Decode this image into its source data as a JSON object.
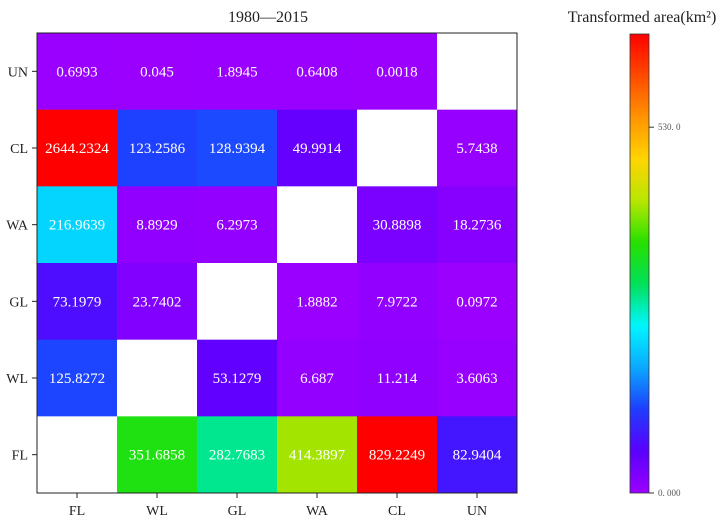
{
  "chart_data": {
    "type": "heatmap",
    "title": "1980—2015",
    "xlabel": "",
    "ylabel": "",
    "x_categories": [
      "FL",
      "WL",
      "GL",
      "WA",
      "CL",
      "UN"
    ],
    "y_categories": [
      "UN",
      "CL",
      "WA",
      "GL",
      "WL",
      "FL"
    ],
    "values": [
      [
        "0.6993",
        "0.045",
        "1.8945",
        "0.6408",
        "0.0018",
        null
      ],
      [
        "2644.2324",
        "123.2586",
        "128.9394",
        "49.9914",
        null,
        "5.7438"
      ],
      [
        "216.9639",
        "8.8929",
        "6.2973",
        null,
        "30.8898",
        "18.2736"
      ],
      [
        "73.1979",
        "23.7402",
        null,
        "1.8882",
        "7.9722",
        "0.0972"
      ],
      [
        "125.8272",
        null,
        "53.1279",
        "6.687",
        "11.214",
        "3.6063"
      ],
      [
        null,
        "351.6858",
        "282.7683",
        "414.3897",
        "829.2249",
        "82.9404"
      ]
    ],
    "colorbar": {
      "title": "Transformed area(km²)",
      "range": [
        0,
        665
      ],
      "ticks": [
        {
          "value": 0,
          "label": "0. 000"
        },
        {
          "value": 530,
          "label": "530. 0"
        }
      ],
      "colormap": [
        "#9b00ff",
        "#5a00ff",
        "#1f3cff",
        "#0aa8ff",
        "#00f5ff",
        "#00e05a",
        "#26e000",
        "#b8e600",
        "#ffd400",
        "#ff9400",
        "#ff4a00",
        "#ff0000"
      ]
    }
  }
}
